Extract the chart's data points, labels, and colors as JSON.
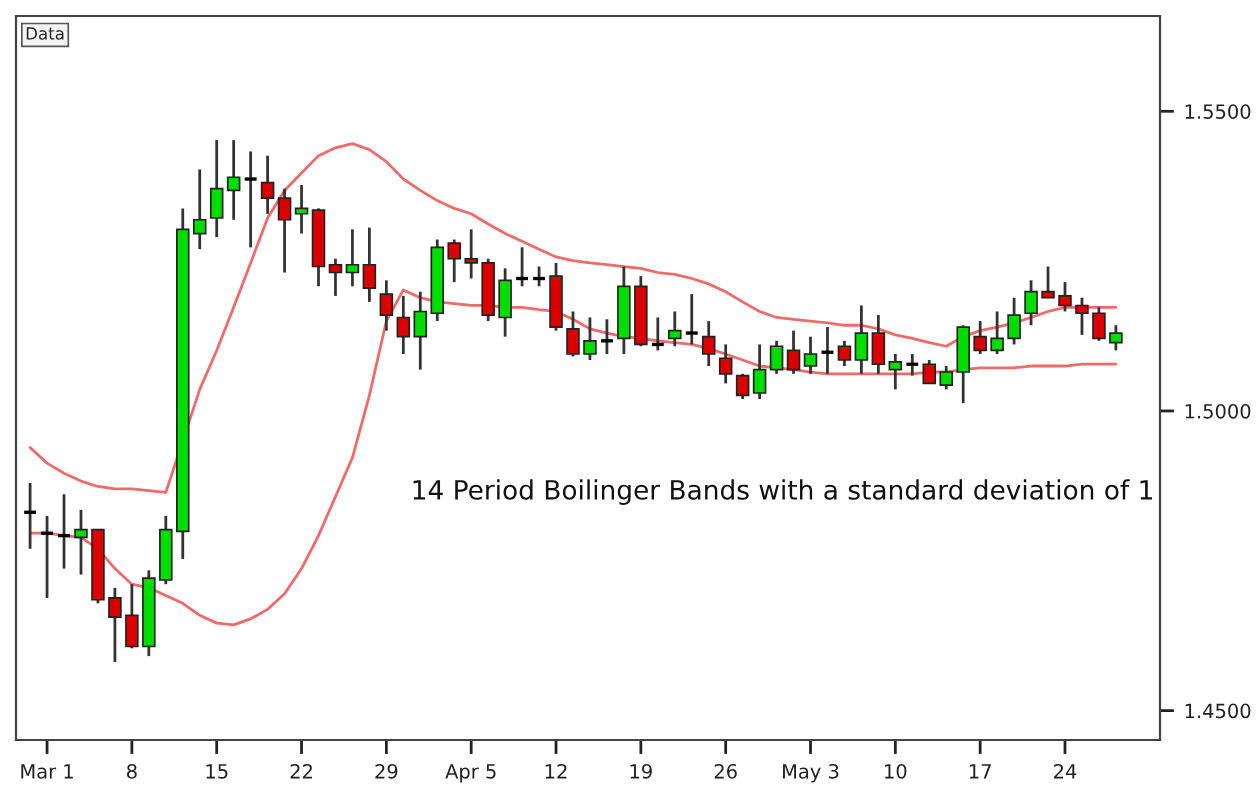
{
  "chart_data": {
    "type": "candlestick",
    "categories": [
      null,
      "Mar 1",
      null,
      null,
      null,
      null,
      "8",
      null,
      null,
      null,
      null,
      "15",
      null,
      null,
      null,
      null,
      "22",
      null,
      null,
      null,
      null,
      "29",
      null,
      null,
      null,
      null,
      "Apr 5",
      null,
      null,
      null,
      null,
      "12",
      null,
      null,
      null,
      null,
      "19",
      null,
      null,
      null,
      null,
      "26",
      null,
      null,
      null,
      null,
      "May 3",
      null,
      null,
      null,
      null,
      "10",
      null,
      null,
      null,
      null,
      "17",
      null,
      null,
      null,
      null,
      "24",
      null,
      null,
      null
    ],
    "ohlc": [
      [
        1.4831,
        1.488,
        1.477,
        1.4831
      ],
      [
        1.4796,
        1.4825,
        1.4688,
        1.4796
      ],
      [
        1.4792,
        1.4861,
        1.4737,
        1.4792
      ],
      [
        1.4789,
        1.4835,
        1.4727,
        1.4802
      ],
      [
        1.4802,
        1.4802,
        1.4679,
        1.4685
      ],
      [
        1.4688,
        1.4705,
        1.4581,
        1.4656
      ],
      [
        1.4659,
        1.4711,
        1.4604,
        1.4607
      ],
      [
        1.4607,
        1.4734,
        1.4591,
        1.4721
      ],
      [
        1.4718,
        1.4825,
        1.4711,
        1.4802
      ],
      [
        1.4799,
        1.5338,
        1.4753,
        1.5303
      ],
      [
        1.5296,
        1.5403,
        1.527,
        1.5319
      ],
      [
        1.5322,
        1.5452,
        1.529,
        1.5371
      ],
      [
        1.5368,
        1.5452,
        1.5319,
        1.539
      ],
      [
        1.5387,
        1.5433,
        1.5273,
        1.5387
      ],
      [
        1.5381,
        1.5426,
        1.5329,
        1.5355
      ],
      [
        1.5355,
        1.5371,
        1.5231,
        1.5319
      ],
      [
        1.5329,
        1.5377,
        1.5296,
        1.5338
      ],
      [
        1.5335,
        1.5338,
        1.5208,
        1.5241
      ],
      [
        1.5244,
        1.5254,
        1.5192,
        1.5231
      ],
      [
        1.5231,
        1.5303,
        1.5208,
        1.5244
      ],
      [
        1.5244,
        1.5306,
        1.5182,
        1.5205
      ],
      [
        1.5195,
        1.5218,
        1.5134,
        1.516
      ],
      [
        1.5156,
        1.5192,
        1.5095,
        1.5124
      ],
      [
        1.5124,
        1.5199,
        1.5069,
        1.5166
      ],
      [
        1.5163,
        1.5286,
        1.515,
        1.5273
      ],
      [
        1.528,
        1.5286,
        1.5215,
        1.5254
      ],
      [
        1.5254,
        1.5303,
        1.5221,
        1.5247
      ],
      [
        1.5247,
        1.5254,
        1.515,
        1.516
      ],
      [
        1.5156,
        1.5238,
        1.5124,
        1.5218
      ],
      [
        1.5221,
        1.5273,
        1.5208,
        1.5221
      ],
      [
        1.5221,
        1.5241,
        1.5208,
        1.5221
      ],
      [
        1.5225,
        1.5247,
        1.5134,
        1.514
      ],
      [
        1.5137,
        1.5166,
        1.5091,
        1.5095
      ],
      [
        1.5095,
        1.5156,
        1.5085,
        1.5117
      ],
      [
        1.5117,
        1.5153,
        1.5095,
        1.5117
      ],
      [
        1.5121,
        1.5241,
        1.5095,
        1.5208
      ],
      [
        1.5208,
        1.5225,
        1.5108,
        1.5111
      ],
      [
        1.5111,
        1.5156,
        1.5101,
        1.5111
      ],
      [
        1.5121,
        1.5166,
        1.5108,
        1.5134
      ],
      [
        1.513,
        1.5195,
        1.5111,
        1.513
      ],
      [
        1.5124,
        1.515,
        1.5075,
        1.5095
      ],
      [
        1.5088,
        1.5111,
        1.5046,
        1.5062
      ],
      [
        1.5059,
        1.5062,
        1.502,
        1.5026
      ],
      [
        1.503,
        1.5111,
        1.502,
        1.5069
      ],
      [
        1.5069,
        1.5117,
        1.5062,
        1.5108
      ],
      [
        1.5101,
        1.5134,
        1.5062,
        1.5069
      ],
      [
        1.5075,
        1.5124,
        1.5062,
        1.5095
      ],
      [
        1.5098,
        1.514,
        1.5062,
        1.5098
      ],
      [
        1.5108,
        1.5117,
        1.5075,
        1.5085
      ],
      [
        1.5085,
        1.5176,
        1.5062,
        1.513
      ],
      [
        1.513,
        1.516,
        1.5062,
        1.5078
      ],
      [
        1.5069,
        1.5095,
        1.5036,
        1.5082
      ],
      [
        1.5078,
        1.5095,
        1.5059,
        1.5078
      ],
      [
        1.5078,
        1.5085,
        1.5046,
        1.5046
      ],
      [
        1.5043,
        1.5075,
        1.5036,
        1.5065
      ],
      [
        1.5065,
        1.5143,
        1.5013,
        1.514
      ],
      [
        1.5124,
        1.515,
        1.5095,
        1.5101
      ],
      [
        1.5101,
        1.5166,
        1.5095,
        1.5121
      ],
      [
        1.5121,
        1.5189,
        1.5111,
        1.516
      ],
      [
        1.5163,
        1.5218,
        1.5143,
        1.5199
      ],
      [
        1.5199,
        1.5241,
        1.5189,
        1.5189
      ],
      [
        1.5192,
        1.5215,
        1.5166,
        1.5176
      ],
      [
        1.5176,
        1.5189,
        1.5127,
        1.5163
      ],
      [
        1.5163,
        1.5173,
        1.5117,
        1.5121
      ],
      [
        1.5114,
        1.5143,
        1.5101,
        1.513
      ]
    ],
    "colors": [
      "#000000",
      "#000000",
      "#000000",
      "#00dd00",
      "#dd0000",
      "#dd0000",
      "#dd0000",
      "#00dd00",
      "#00dd00",
      "#00dd00",
      "#00dd00",
      "#00dd00",
      "#00dd00",
      "#000000",
      "#dd0000",
      "#dd0000",
      "#00dd00",
      "#dd0000",
      "#dd0000",
      "#00dd00",
      "#dd0000",
      "#dd0000",
      "#dd0000",
      "#00dd00",
      "#00dd00",
      "#dd0000",
      "#dd0000",
      "#dd0000",
      "#00dd00",
      "#000000",
      "#000000",
      "#dd0000",
      "#dd0000",
      "#00dd00",
      "#000000",
      "#00dd00",
      "#dd0000",
      "#000000",
      "#00dd00",
      "#000000",
      "#dd0000",
      "#dd0000",
      "#dd0000",
      "#00dd00",
      "#00dd00",
      "#dd0000",
      "#00dd00",
      "#000000",
      "#dd0000",
      "#00dd00",
      "#dd0000",
      "#00dd00",
      "#000000",
      "#dd0000",
      "#00dd00",
      "#00dd00",
      "#dd0000",
      "#00dd00",
      "#00dd00",
      "#00dd00",
      "#dd0000",
      "#dd0000",
      "#dd0000",
      "#dd0000",
      "#00dd00"
    ],
    "series": [
      {
        "type": "line",
        "color": "#f06a6a",
        "values": [
          1.4939,
          1.4913,
          1.4896,
          1.4883,
          1.4874,
          1.487,
          1.487,
          1.4867,
          1.4864,
          null,
          1.5036,
          1.5101,
          1.5173,
          1.5247,
          1.5322,
          1.5368,
          1.5397,
          1.5426,
          1.5439,
          1.5446,
          1.5436,
          1.5416,
          1.5387,
          1.5368,
          1.5351,
          1.5338,
          1.5329,
          1.5312,
          1.5296,
          1.5283,
          1.527,
          1.5257,
          1.5251,
          1.5247,
          1.5244,
          1.5241,
          1.5238,
          1.5231,
          1.5228,
          1.5221,
          1.5212,
          1.5199,
          1.5182,
          1.5166,
          1.5156,
          1.5153,
          1.515,
          1.5147,
          1.5143,
          1.5143,
          1.5137,
          1.5127,
          1.5121,
          1.5114,
          1.5108,
          1.5124,
          1.5134,
          1.514,
          1.5147,
          1.5156,
          1.5166,
          1.5173,
          1.5173,
          1.5173,
          1.5173
        ]
      },
      {
        "type": "line",
        "color": "#f06a6a",
        "values": [
          1.4796,
          1.4796,
          1.4792,
          1.4789,
          1.477,
          1.4737,
          1.4711,
          1.4705,
          1.4692,
          1.4679,
          1.4659,
          1.4646,
          1.4643,
          1.4653,
          1.4669,
          1.4695,
          1.4737,
          1.4792,
          1.4857,
          1.4922,
          1.5026,
          1.515,
          1.5202,
          1.5189,
          1.5182,
          1.5179,
          1.5176,
          1.5176,
          1.5173,
          1.5173,
          1.5169,
          1.5166,
          1.5153,
          1.5137,
          1.513,
          1.5124,
          1.5121,
          1.5117,
          1.5114,
          1.5111,
          1.5104,
          1.5095,
          1.5085,
          1.5075,
          1.5072,
          1.5069,
          1.5065,
          1.5062,
          1.5062,
          1.5062,
          1.5062,
          1.5062,
          1.5062,
          1.5065,
          1.5065,
          1.5069,
          1.5072,
          1.5072,
          1.5072,
          1.5075,
          1.5075,
          1.5075,
          1.5078,
          1.5078,
          1.5078
        ]
      }
    ],
    "ylim": [
      1.4451,
      1.5659
    ],
    "yticks": [
      {
        "value": 1.45,
        "label": "1.4500"
      },
      {
        "value": 1.5,
        "label": "1.5000"
      },
      {
        "value": 1.55,
        "label": "1.5500"
      }
    ],
    "grid": false,
    "legend": false,
    "annotations": [
      "Data",
      "14 Period Boilinger Bands with a standard deviation of 1"
    ]
  }
}
